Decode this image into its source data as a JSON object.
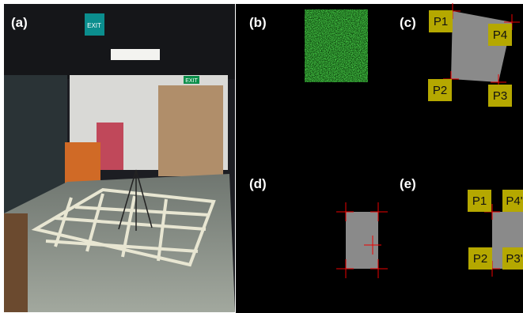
{
  "panels": [
    {
      "label": "(a)"
    },
    {
      "label": "(b)"
    },
    {
      "label": "(c)"
    },
    {
      "label": "(d)"
    },
    {
      "label": "(e)"
    }
  ],
  "signs": [
    "EXIT",
    "EXIT"
  ],
  "points_c": [
    "P1",
    "P4",
    "P2",
    "P3"
  ],
  "points_e": [
    "P1",
    "P4'",
    "P2",
    "P3'"
  ]
}
